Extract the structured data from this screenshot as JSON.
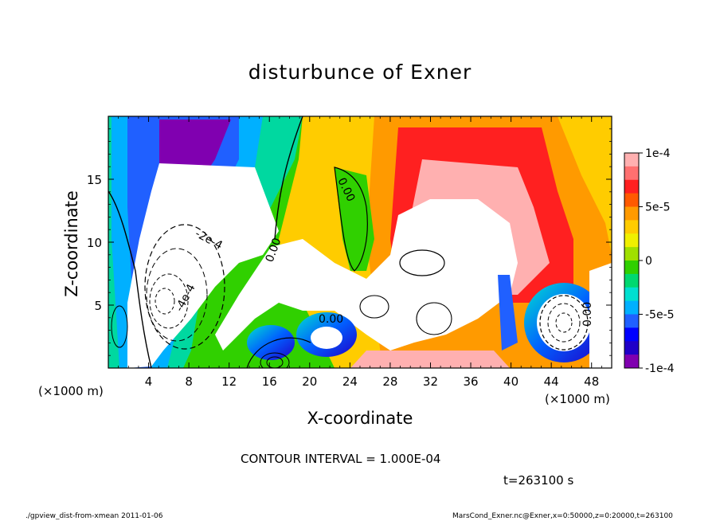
{
  "chart_data": {
    "type": "heatmap",
    "title": "disturbunce of Exner",
    "xlabel": "X-coordinate",
    "ylabel": "Z-coordinate",
    "x_unit_label": "(×1000 m)",
    "xlim": [
      0,
      50
    ],
    "ylim": [
      0,
      20
    ],
    "x_ticks": [
      4,
      8,
      12,
      16,
      20,
      24,
      28,
      32,
      36,
      40,
      44,
      48
    ],
    "y_ticks": [
      5,
      10,
      15
    ],
    "colorbar": {
      "range": [
        -0.0001,
        0.0001
      ],
      "tick_values": [
        0.0001,
        5e-05,
        0,
        -5e-05,
        -0.0001
      ],
      "tick_labels": [
        "1e-4",
        "5e-5",
        "0",
        "-5e-5",
        "-1e-4"
      ],
      "colors": [
        "#ffb0b0",
        "#ff7070",
        "#ff2020",
        "#ff5a00",
        "#ff9a00",
        "#ffcc00",
        "#f0f000",
        "#a0e000",
        "#30d000",
        "#00d870",
        "#00e0d0",
        "#00b0ff",
        "#2060ff",
        "#0000ff",
        "#2000c8",
        "#8000b0"
      ]
    },
    "contour_interval_text": "CONTOUR INTERVAL = 1.000E-04",
    "contour_labels": [
      "-2e-4",
      "-4e-4",
      "0.00",
      "0.00",
      "0.00",
      "0.00"
    ],
    "time_text": "t=263100 s"
  },
  "footer": {
    "left": "./gpview_dist-from-xmean  2011-01-06",
    "right": "MarsCond_Exner.nc@Exner,x=0:50000,z=0:20000,t=263100"
  }
}
